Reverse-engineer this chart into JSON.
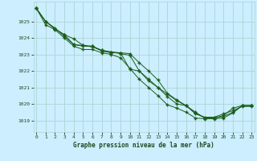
{
  "title": "Graphe pression niveau de la mer (hPa)",
  "background_color": "#cceeff",
  "grid_color": "#aad4d4",
  "line_color": "#1a5c1a",
  "x_ticks": [
    0,
    1,
    2,
    3,
    4,
    5,
    6,
    7,
    8,
    9,
    10,
    11,
    12,
    13,
    14,
    15,
    16,
    17,
    18,
    19,
    20,
    21,
    22,
    23
  ],
  "y_ticks": [
    1019,
    1020,
    1021,
    1022,
    1023,
    1024,
    1025
  ],
  "xlim": [
    -0.3,
    23.3
  ],
  "ylim": [
    1018.3,
    1026.2
  ],
  "series": [
    [
      1025.8,
      1025.0,
      1024.6,
      1024.1,
      1023.6,
      1023.5,
      1023.5,
      1023.2,
      1023.1,
      1023.1,
      1022.1,
      1022.0,
      1021.4,
      1021.0,
      1020.6,
      1020.2,
      1019.9,
      1019.4,
      1019.2,
      1019.2,
      1019.4,
      1019.6,
      1019.85,
      1019.85
    ],
    [
      1025.8,
      1025.0,
      1024.55,
      1024.2,
      1023.95,
      1023.55,
      1023.5,
      1023.25,
      1023.15,
      1023.1,
      1023.05,
      1022.5,
      1022.0,
      1021.45,
      1020.65,
      1020.25,
      1019.9,
      1019.5,
      1019.15,
      1019.15,
      1019.25,
      1019.5,
      1019.9,
      1019.9
    ],
    [
      1025.8,
      1025.0,
      1024.55,
      1024.2,
      1023.6,
      1023.55,
      1023.45,
      1023.25,
      1023.15,
      1023.05,
      1022.95,
      1022.0,
      1021.5,
      1021.0,
      1020.45,
      1020.0,
      1019.9,
      1019.45,
      1019.15,
      1019.15,
      1019.3,
      1019.75,
      1019.9,
      1019.9
    ],
    [
      1025.8,
      1024.8,
      1024.5,
      1024.0,
      1023.5,
      1023.3,
      1023.3,
      1023.1,
      1023.0,
      1022.8,
      1022.15,
      1021.5,
      1021.0,
      1020.5,
      1019.95,
      1019.75,
      1019.5,
      1019.15,
      1019.1,
      1019.1,
      1019.15,
      1019.45,
      1019.9,
      1019.9
    ]
  ]
}
